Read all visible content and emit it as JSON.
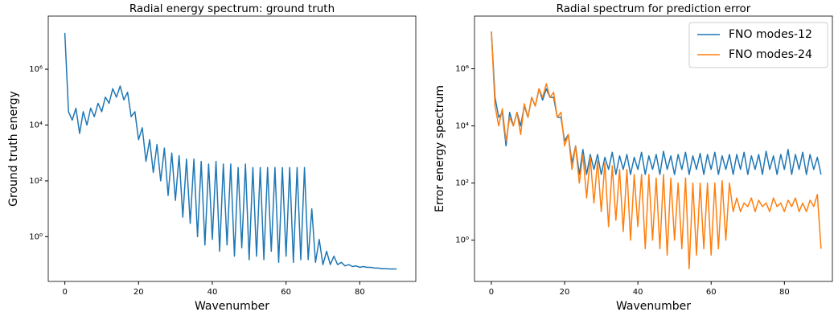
{
  "chart_data": [
    {
      "type": "line",
      "title": "Radial energy spectrum: ground truth",
      "xlabel": "Wavenumber",
      "ylabel": "Ground truth energy",
      "log_y": true,
      "color": "#1f77b4",
      "xlim": [
        -4.5,
        95.2
      ],
      "ylim": [
        0.025,
        80000000
      ],
      "xticks": [
        0,
        20,
        40,
        60,
        80
      ],
      "yticks": [
        {
          "value": 1,
          "label": "10⁰"
        },
        {
          "value": 100,
          "label": "10²"
        },
        {
          "value": 10000,
          "label": "10⁴"
        },
        {
          "value": 1000000,
          "label": "10⁶"
        }
      ],
      "x": [
        0,
        1,
        2,
        3,
        4,
        5,
        6,
        7,
        8,
        9,
        10,
        11,
        12,
        13,
        14,
        15,
        16,
        17,
        18,
        19,
        20,
        21,
        22,
        23,
        24,
        25,
        26,
        27,
        28,
        29,
        30,
        31,
        32,
        33,
        34,
        35,
        36,
        37,
        38,
        39,
        40,
        41,
        42,
        43,
        44,
        45,
        46,
        47,
        48,
        49,
        50,
        51,
        52,
        53,
        54,
        55,
        56,
        57,
        58,
        59,
        60,
        61,
        62,
        63,
        64,
        65,
        66,
        67,
        68,
        69,
        70,
        71,
        72,
        73,
        74,
        75,
        76,
        77,
        78,
        79,
        80,
        81,
        82,
        83,
        84,
        85,
        86,
        87,
        88,
        89,
        90
      ],
      "values": [
        20000000,
        30000,
        15000,
        40000,
        5000,
        30000,
        10000,
        40000,
        20000,
        60000,
        30000,
        100000,
        60000,
        200000,
        100000,
        250000,
        80000,
        150000,
        20000,
        30000,
        3000,
        8000,
        500,
        3000,
        200,
        2000,
        100,
        1500,
        30,
        1000,
        20,
        800,
        5,
        600,
        3,
        600,
        1,
        500,
        0.5,
        400,
        0.8,
        500,
        0.3,
        400,
        0.5,
        400,
        0.2,
        300,
        0.4,
        400,
        0.15,
        300,
        0.2,
        300,
        0.15,
        300,
        0.3,
        300,
        0.12,
        300,
        0.2,
        300,
        0.12,
        300,
        0.15,
        300,
        0.15,
        10,
        0.12,
        0.8,
        0.1,
        0.3,
        0.1,
        0.2,
        0.1,
        0.12,
        0.09,
        0.1,
        0.085,
        0.09,
        0.08,
        0.085,
        0.08,
        0.08,
        0.075,
        0.075,
        0.072,
        0.072,
        0.07,
        0.07,
        0.07
      ]
    },
    {
      "type": "line",
      "title": "Radial spectrum for prediction error",
      "xlabel": "Wavenumber",
      "ylabel": "Error energy spectrum",
      "log_y": true,
      "legend": "upper right",
      "xlim": [
        -4.6,
        93.1
      ],
      "ylim": [
        0.036,
        70000000
      ],
      "xticks": [
        0,
        20,
        40,
        60,
        80
      ],
      "yticks": [
        {
          "value": 1,
          "label": "10⁰"
        },
        {
          "value": 100,
          "label": "10²"
        },
        {
          "value": 10000,
          "label": "10⁴"
        },
        {
          "value": 1000000,
          "label": "10⁶"
        }
      ],
      "x": [
        0,
        1,
        2,
        3,
        4,
        5,
        6,
        7,
        8,
        9,
        10,
        11,
        12,
        13,
        14,
        15,
        16,
        17,
        18,
        19,
        20,
        21,
        22,
        23,
        24,
        25,
        26,
        27,
        28,
        29,
        30,
        31,
        32,
        33,
        34,
        35,
        36,
        37,
        38,
        39,
        40,
        41,
        42,
        43,
        44,
        45,
        46,
        47,
        48,
        49,
        50,
        51,
        52,
        53,
        54,
        55,
        56,
        57,
        58,
        59,
        60,
        61,
        62,
        63,
        64,
        65,
        66,
        67,
        68,
        69,
        70,
        71,
        72,
        73,
        74,
        75,
        76,
        77,
        78,
        79,
        80,
        81,
        82,
        83,
        84,
        85,
        86,
        87,
        88,
        89,
        90
      ],
      "series": [
        {
          "name": "FNO modes-12",
          "color": "#1f77b4",
          "values": [
            20000000,
            100000,
            20000,
            30000,
            2000,
            30000,
            10000,
            30000,
            10000,
            50000,
            20000,
            100000,
            50000,
            200000,
            80000,
            200000,
            100000,
            100000,
            20000,
            20000,
            3000,
            5000,
            500,
            2000,
            200,
            1500,
            200,
            1000,
            300,
            1000,
            200,
            800,
            300,
            1200,
            200,
            900,
            300,
            1000,
            200,
            800,
            300,
            1200,
            200,
            900,
            300,
            1000,
            200,
            1300,
            300,
            900,
            200,
            1000,
            300,
            1200,
            200,
            900,
            300,
            1100,
            200,
            1000,
            300,
            1200,
            200,
            900,
            300,
            1000,
            200,
            1000,
            300,
            1200,
            200,
            900,
            300,
            1000,
            200,
            1300,
            300,
            900,
            200,
            1000,
            300,
            1500,
            200,
            1000,
            300,
            1200,
            200,
            1000,
            300,
            800,
            200
          ]
        },
        {
          "name": "FNO modes-24",
          "color": "#ff7f0e",
          "values": [
            20000000,
            50000,
            10000,
            40000,
            3000,
            20000,
            10000,
            30000,
            5000,
            60000,
            20000,
            100000,
            50000,
            200000,
            100000,
            300000,
            100000,
            150000,
            20000,
            30000,
            2000,
            5000,
            300,
            2000,
            100,
            1000,
            30,
            800,
            20,
            600,
            10,
            500,
            3,
            400,
            5,
            300,
            2,
            300,
            1,
            200,
            3,
            200,
            0.5,
            200,
            1,
            150,
            0.5,
            200,
            0.3,
            150,
            1,
            100,
            0.5,
            150,
            0.1,
            100,
            0.3,
            100,
            0.5,
            100,
            0.3,
            100,
            0.5,
            120,
            1,
            100,
            10,
            30,
            10,
            20,
            15,
            30,
            10,
            25,
            15,
            20,
            10,
            30,
            15,
            20,
            10,
            25,
            15,
            30,
            10,
            20,
            10,
            25,
            15,
            40,
            0.5
          ]
        }
      ]
    }
  ]
}
